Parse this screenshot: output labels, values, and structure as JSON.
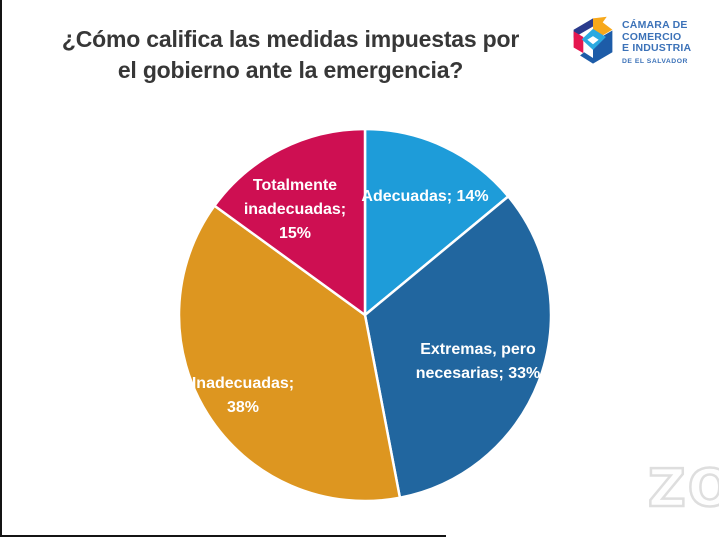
{
  "page": {
    "background": "#FFFFFF",
    "frame_edge_color": "#141414"
  },
  "title": {
    "line1": "¿Cómo califica las medidas impuestas por",
    "line2": "el gobierno ante la emergencia?",
    "color": "#373737"
  },
  "logo": {
    "org_lines": [
      "CÁMARA DE",
      "COMERCIO",
      "E INDUSTRIA"
    ],
    "org_sub": "DE EL SALVADOR",
    "text_color": "#3C72B8",
    "cube_colors": {
      "navy": "#2A3A8C",
      "yellow": "#F7A81B",
      "red": "#E5174F",
      "blue": "#1D5CA8",
      "cyan": "#2BA9E0",
      "diamond": "#FFFFFF"
    }
  },
  "watermark": {
    "text": "ZO",
    "stroke": "#DEDEDE",
    "fill": "#FEFEFE"
  },
  "chart_data": {
    "type": "pie",
    "title": "¿Cómo califica las medidas impuestas por el gobierno ante la emergencia?",
    "categories": [
      "Adecuadas",
      "Extremas, pero necesarias",
      "Inadecuadas",
      "Totalmente inadecuadas"
    ],
    "values": [
      14,
      33,
      38,
      15
    ],
    "start_angle_deg": 0,
    "direction": "clockwise",
    "labels_inside": true,
    "separator_color": "#FFFFFF",
    "label_color": "#FFFFFF",
    "slices": [
      {
        "label": "Adecuadas",
        "value": 14,
        "color": "#1E9CD9",
        "label_lines": [
          "Adecuadas; 14%"
        ]
      },
      {
        "label": "Extremas, pero necesarias",
        "value": 33,
        "color": "#21669F",
        "label_lines": [
          "Extremas, pero",
          "necesarias; 33%"
        ]
      },
      {
        "label": "Inadecuadas",
        "value": 38,
        "color": "#DD9620",
        "label_lines": [
          "Inadecuadas;",
          "38%"
        ]
      },
      {
        "label": "Totalmente inadecuadas",
        "value": 15,
        "color": "#CE0F52",
        "label_lines": [
          "Totalmente",
          "inadecuadas;",
          "15%"
        ]
      }
    ]
  }
}
